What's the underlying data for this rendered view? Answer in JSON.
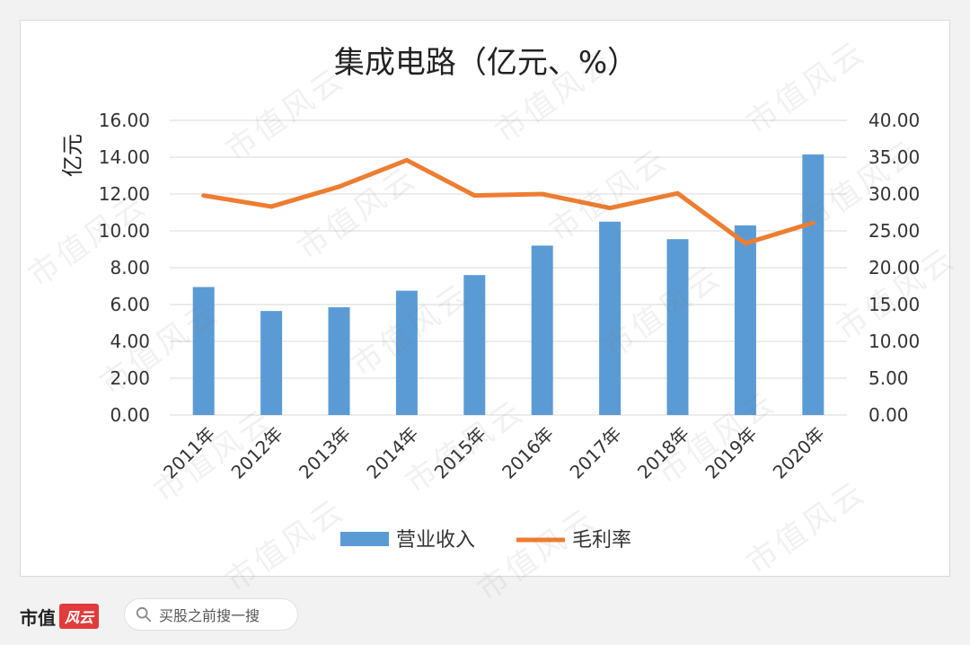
{
  "chart_data": {
    "type": "bar+line",
    "title": "集成电路（亿元、%）",
    "ylabel_left": "亿元",
    "categories": [
      "2011年",
      "2012年",
      "2013年",
      "2014年",
      "2015年",
      "2016年",
      "2017年",
      "2018年",
      "2019年",
      "2020年"
    ],
    "series": [
      {
        "name": "营业收入",
        "type": "bar",
        "axis": "left",
        "color": "#5b9bd5",
        "values": [
          6.95,
          5.65,
          5.85,
          6.75,
          7.6,
          9.2,
          10.5,
          9.55,
          10.3,
          14.15
        ]
      },
      {
        "name": "毛利率",
        "type": "line",
        "axis": "right",
        "color": "#ed7d31",
        "values": [
          29.8,
          28.3,
          31.0,
          34.6,
          29.8,
          30.0,
          28.1,
          30.1,
          23.3,
          26.1
        ]
      }
    ],
    "ylim_left": [
      0,
      16
    ],
    "ylim_right": [
      0,
      40
    ],
    "yticks_left": [
      "0.00",
      "2.00",
      "4.00",
      "6.00",
      "8.00",
      "10.00",
      "12.00",
      "14.00",
      "16.00"
    ],
    "yticks_right": [
      "0.00",
      "5.00",
      "10.00",
      "15.00",
      "20.00",
      "25.00",
      "30.00",
      "35.00",
      "40.00"
    ],
    "grid": true,
    "legend": "bottom"
  },
  "footer": {
    "brand": "市值",
    "brand_logo": "风云",
    "search_text": "买股之前搜一搜"
  },
  "watermark": "市值风云"
}
